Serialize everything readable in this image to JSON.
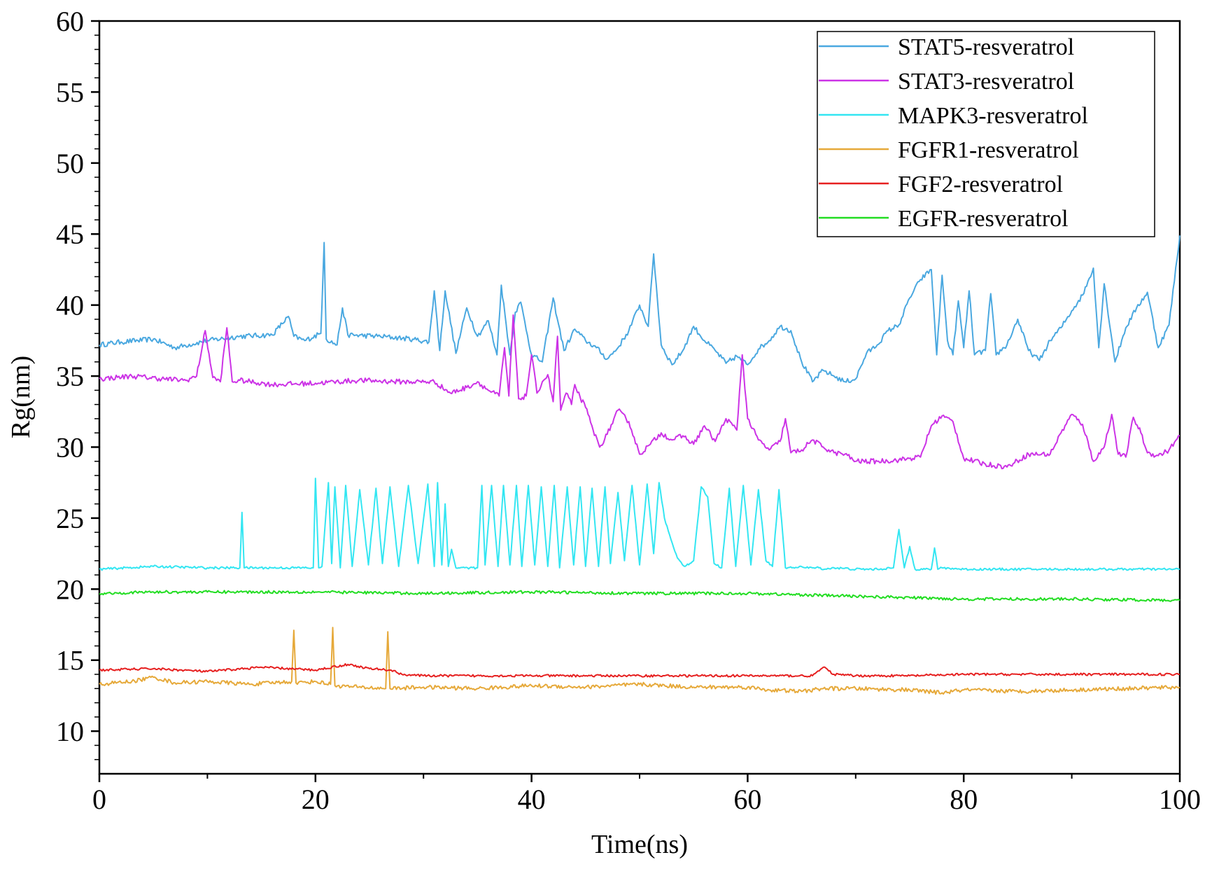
{
  "chart_data": {
    "type": "line",
    "title": "",
    "xlabel": "Time(ns)",
    "ylabel": "Rg(nm)",
    "xlim": [
      0,
      100
    ],
    "ylim": [
      7,
      60
    ],
    "xticks": [
      0,
      20,
      40,
      60,
      80,
      100
    ],
    "yticks": [
      10,
      15,
      20,
      25,
      30,
      35,
      40,
      45,
      50,
      55,
      60
    ],
    "grid": false,
    "legend_position": "top-right",
    "series": [
      {
        "name": "STAT5-resveratrol",
        "color": "#4aa8e0",
        "x": [
          0,
          2,
          5,
          7,
          10,
          13,
          16,
          17.5,
          18,
          19,
          20.5,
          20.8,
          21,
          22,
          22.5,
          23,
          26,
          29,
          30.5,
          31,
          31.5,
          32,
          33,
          34,
          35,
          36,
          36.8,
          37.2,
          38,
          38.5,
          39,
          40,
          41,
          42,
          43,
          44,
          45,
          46,
          47,
          48,
          49,
          50,
          50.8,
          51.3,
          52,
          53,
          54,
          55,
          56,
          57,
          58,
          59,
          60,
          61,
          62,
          63,
          64,
          65,
          66,
          67,
          68,
          69,
          70,
          71,
          72,
          73,
          74,
          75,
          76,
          77,
          77.5,
          78,
          78.5,
          79,
          79.5,
          80,
          80.5,
          81,
          82,
          82.5,
          83,
          84,
          85,
          86,
          87,
          88,
          89,
          90,
          91,
          92,
          92.5,
          93,
          94,
          95,
          96,
          97,
          98,
          99,
          100
        ],
        "values": [
          37.2,
          37.4,
          37.6,
          37.0,
          37.5,
          37.8,
          37.9,
          39.2,
          37.8,
          37.5,
          38.0,
          44.4,
          37.6,
          37.2,
          39.8,
          37.9,
          37.8,
          37.6,
          37.4,
          41.0,
          36.8,
          41.0,
          36.6,
          39.8,
          37.8,
          38.9,
          36.5,
          41.4,
          36.5,
          39.5,
          40.2,
          36.5,
          36.0,
          40.5,
          36.8,
          38.3,
          37.5,
          37.0,
          36.2,
          37.0,
          38.2,
          40.0,
          38.5,
          43.6,
          37.2,
          35.8,
          36.8,
          38.5,
          37.5,
          36.8,
          35.9,
          36.4,
          35.8,
          36.9,
          37.5,
          38.5,
          38.2,
          36.0,
          34.6,
          35.4,
          35.0,
          34.6,
          34.8,
          36.6,
          37.2,
          38.2,
          38.6,
          40.5,
          41.8,
          42.5,
          36.5,
          42.1,
          37.5,
          36.5,
          40.3,
          37.0,
          41.0,
          36.5,
          36.8,
          40.8,
          36.5,
          37.2,
          39.0,
          36.8,
          36.1,
          37.5,
          38.4,
          39.6,
          40.7,
          42.6,
          37.0,
          41.5,
          36.0,
          38.4,
          39.8,
          40.9,
          37.0,
          38.6,
          44.9
        ]
      },
      {
        "name": "STAT3-resveratrol",
        "color": "#cc33e6",
        "x": [
          0,
          3,
          6,
          8,
          9,
          9.8,
          10.5,
          11.2,
          11.8,
          12.3,
          13,
          16,
          20,
          24,
          28,
          31,
          32.5,
          34,
          35,
          36,
          37,
          37.5,
          37.9,
          38.3,
          38.8,
          39.5,
          40,
          40.5,
          41,
          41.5,
          42,
          42.4,
          42.7,
          43.2,
          43.7,
          44,
          44.5,
          45,
          45.7,
          46.3,
          47,
          48,
          49,
          50,
          51,
          52,
          53,
          54,
          55,
          56,
          57,
          58,
          59,
          59.5,
          60,
          61,
          62,
          63,
          63.5,
          64,
          65,
          66,
          67,
          68,
          69,
          70,
          72,
          74,
          76,
          77,
          78,
          79,
          80,
          82,
          84,
          86,
          88,
          89,
          90,
          91,
          92,
          93,
          93.7,
          94.3,
          95,
          95.7,
          96.4,
          97,
          98,
          99,
          100
        ],
        "values": [
          34.8,
          35.0,
          34.8,
          34.7,
          35.0,
          38.2,
          34.9,
          34.6,
          38.4,
          34.6,
          34.7,
          34.4,
          34.5,
          34.7,
          34.6,
          34.6,
          33.8,
          34.2,
          34.6,
          34.0,
          33.6,
          37.0,
          33.6,
          39.3,
          33.4,
          33.6,
          36.5,
          33.8,
          34.6,
          35.1,
          33.2,
          37.8,
          32.6,
          33.8,
          33.0,
          34.4,
          33.5,
          32.8,
          31.2,
          30.0,
          30.9,
          32.6,
          31.8,
          29.5,
          30.2,
          31.0,
          30.5,
          30.8,
          30.2,
          31.5,
          30.4,
          32.0,
          31.2,
          36.5,
          32.0,
          30.5,
          29.8,
          30.4,
          32.0,
          29.6,
          29.8,
          30.5,
          30.0,
          29.6,
          29.5,
          29.0,
          29.0,
          29.1,
          29.3,
          31.5,
          32.2,
          31.8,
          29.2,
          28.8,
          28.6,
          29.5,
          29.5,
          31.0,
          32.3,
          31.6,
          29.0,
          30.0,
          32.3,
          29.5,
          29.3,
          32.1,
          31.0,
          29.6,
          29.4,
          29.8,
          30.8
        ]
      },
      {
        "name": "MAPK3-resveratrol",
        "color": "#33e6f2",
        "x": [
          0,
          5,
          10,
          13,
          13.2,
          13.4,
          16,
          19.8,
          20,
          20.3,
          20.6,
          21.2,
          21.5,
          21.8,
          22.3,
          22.8,
          23.4,
          24.1,
          24.9,
          25.6,
          26.2,
          26.9,
          27.7,
          28.6,
          29.5,
          30.4,
          31,
          31.3,
          31.7,
          32,
          32.3,
          32.6,
          33,
          35,
          35.4,
          35.7,
          36.3,
          36.9,
          37.4,
          38,
          38.6,
          39.1,
          39.7,
          40.3,
          40.9,
          41.5,
          42.1,
          42.6,
          43.3,
          43.9,
          44.5,
          45,
          45.6,
          46.2,
          46.8,
          47.3,
          48,
          48.6,
          49.3,
          50,
          50.7,
          51.3,
          51.8,
          52.3,
          52.9,
          53.5,
          54.2,
          55,
          55.7,
          56.3,
          56.9,
          57.6,
          58.3,
          58.9,
          59.6,
          60.3,
          61,
          61.7,
          62.3,
          62.9,
          63.5,
          64.1,
          64.8,
          65.4,
          66,
          66.6,
          67.3,
          67.8,
          68,
          70,
          72,
          73.5,
          74,
          74.5,
          75,
          75.5,
          77,
          77.3,
          77.6,
          78,
          80,
          85,
          90,
          95,
          100
        ],
        "values": [
          21.4,
          21.6,
          21.5,
          21.5,
          25.4,
          21.5,
          21.5,
          21.5,
          27.8,
          21.5,
          21.6,
          27.5,
          21.8,
          27.2,
          21.5,
          27.3,
          21.6,
          27.0,
          21.7,
          27.1,
          21.8,
          27.2,
          21.6,
          27.3,
          21.8,
          27.4,
          21.6,
          27.5,
          21.7,
          26.0,
          21.6,
          22.8,
          21.5,
          21.5,
          27.3,
          21.7,
          27.3,
          21.6,
          27.3,
          21.7,
          27.3,
          21.6,
          27.3,
          21.7,
          27.2,
          21.6,
          27.3,
          21.5,
          27.2,
          21.7,
          27.2,
          21.6,
          27.1,
          21.6,
          27.2,
          21.8,
          26.8,
          22.0,
          27.3,
          21.7,
          27.4,
          22.5,
          27.5,
          25.0,
          23.5,
          22.2,
          21.6,
          22.0,
          27.2,
          26.5,
          21.8,
          21.5,
          27.1,
          21.6,
          27.3,
          21.7,
          27.0,
          22.0,
          21.6,
          27.0,
          21.5,
          21.5,
          21.6,
          21.5,
          21.5,
          21.5,
          21.4,
          21.5,
          21.5,
          21.4,
          21.4,
          21.5,
          24.2,
          21.5,
          23.0,
          21.4,
          21.4,
          22.9,
          21.4,
          21.5,
          21.4,
          21.4,
          21.4,
          21.4,
          21.4
        ]
      },
      {
        "name": "FGFR1-resveratrol",
        "color": "#e6a93a",
        "x": [
          0,
          3,
          5,
          7,
          10,
          14,
          17.8,
          18,
          18.2,
          20,
          21.4,
          21.6,
          21.8,
          24,
          26.5,
          26.7,
          26.9,
          30,
          35,
          40,
          45,
          50,
          55,
          60,
          62,
          65,
          67,
          70,
          75,
          78,
          80,
          85,
          90,
          95,
          100
        ],
        "values": [
          13.3,
          13.5,
          13.8,
          13.4,
          13.5,
          13.3,
          13.5,
          17.1,
          13.4,
          13.5,
          13.3,
          17.3,
          13.2,
          13.1,
          13.0,
          17.0,
          13.0,
          13.1,
          13.0,
          13.2,
          13.1,
          13.3,
          13.1,
          13.1,
          12.9,
          12.8,
          13.0,
          13.0,
          12.9,
          12.7,
          12.9,
          12.8,
          12.9,
          13.0,
          13.1
        ]
      },
      {
        "name": "FGF2-resveratrol",
        "color": "#e62020",
        "x": [
          0,
          5,
          10,
          15,
          20,
          23,
          25,
          27,
          28,
          30,
          40,
          50,
          60,
          66,
          67,
          68,
          70,
          75,
          80,
          90,
          100
        ],
        "values": [
          14.3,
          14.4,
          14.2,
          14.5,
          14.3,
          14.7,
          14.4,
          14.3,
          14.0,
          13.9,
          13.9,
          13.9,
          13.9,
          13.9,
          14.5,
          14.0,
          13.9,
          13.9,
          14.0,
          14.0,
          14.0
        ]
      },
      {
        "name": "EGFR-resveratrol",
        "color": "#22dd22",
        "x": [
          0,
          5,
          10,
          20,
          30,
          40,
          50,
          60,
          65,
          70,
          80,
          90,
          100
        ],
        "values": [
          19.7,
          19.8,
          19.8,
          19.8,
          19.7,
          19.8,
          19.7,
          19.7,
          19.6,
          19.5,
          19.3,
          19.3,
          19.2
        ]
      }
    ]
  }
}
